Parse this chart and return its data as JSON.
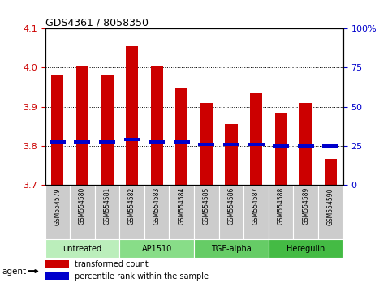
{
  "title": "GDS4361 / 8058350",
  "samples": [
    "GSM554579",
    "GSM554580",
    "GSM554581",
    "GSM554582",
    "GSM554583",
    "GSM554584",
    "GSM554585",
    "GSM554586",
    "GSM554587",
    "GSM554588",
    "GSM554589",
    "GSM554590"
  ],
  "transformed_counts": [
    3.98,
    4.005,
    3.98,
    4.055,
    4.005,
    3.95,
    3.91,
    3.855,
    3.935,
    3.885,
    3.91,
    3.765
  ],
  "percentile_ranks": [
    3.81,
    3.81,
    3.81,
    3.815,
    3.81,
    3.81,
    3.804,
    3.804,
    3.804,
    3.8,
    3.8,
    3.8
  ],
  "ylim_left": [
    3.7,
    4.1
  ],
  "ylim_right": [
    0,
    100
  ],
  "yticks_left": [
    3.7,
    3.8,
    3.9,
    4.0,
    4.1
  ],
  "yticks_right": [
    0,
    25,
    50,
    75,
    100
  ],
  "bar_bottom": 3.7,
  "bar_color": "#cc0000",
  "percentile_color": "#0000cc",
  "grid_color": "#000000",
  "groups": [
    {
      "label": "untreated",
      "start": 0,
      "end": 2,
      "color": "#bbeebb"
    },
    {
      "label": "AP1510",
      "start": 3,
      "end": 5,
      "color": "#88dd88"
    },
    {
      "label": "TGF-alpha",
      "start": 6,
      "end": 8,
      "color": "#66cc66"
    },
    {
      "label": "Heregulin",
      "start": 9,
      "end": 11,
      "color": "#44bb44"
    }
  ],
  "legend_items": [
    {
      "label": "transformed count",
      "color": "#cc0000"
    },
    {
      "label": "percentile rank within the sample",
      "color": "#0000cc"
    }
  ],
  "bar_width": 0.5,
  "pct_bar_width": 0.65,
  "pct_bar_height": 0.008,
  "grid_lines": [
    3.8,
    3.9,
    4.0
  ],
  "label_bg": "#cccccc",
  "fig_width": 4.83,
  "fig_height": 3.54,
  "dpi": 100
}
